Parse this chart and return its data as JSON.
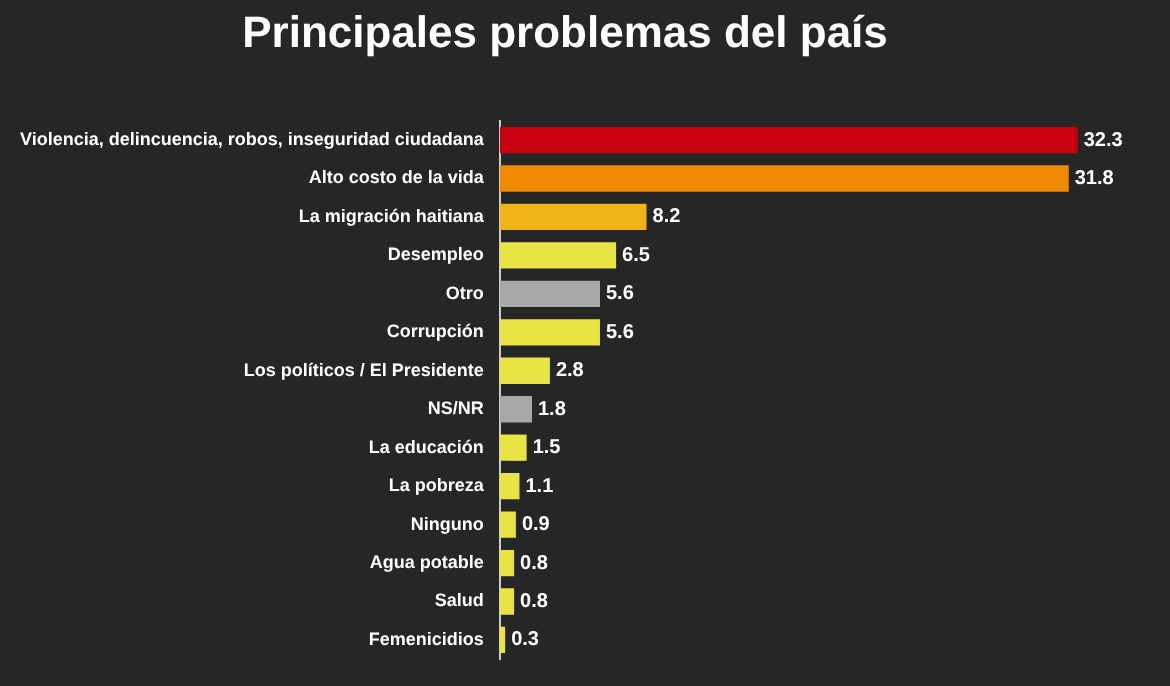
{
  "chart_data": {
    "type": "bar",
    "orientation": "horizontal",
    "title": "Principales problemas del país",
    "categories": [
      "Violencia, delincuencia, robos, inseguridad ciudadana",
      "Alto costo de la vida",
      "La migración haitiana",
      "Desempleo",
      "Otro",
      "Corrupción",
      "Los políticos / El Presidente",
      "NS/NR",
      "La educación",
      "La pobreza",
      "Ninguno",
      "Agua potable",
      "Salud",
      "Femenicidios"
    ],
    "values": [
      32.3,
      31.8,
      8.2,
      6.5,
      5.6,
      5.6,
      2.8,
      1.8,
      1.5,
      1.1,
      0.9,
      0.8,
      0.8,
      0.3
    ],
    "colors": [
      "#c8000f",
      "#f08a00",
      "#f0b418",
      "#e8e444",
      "#a8a8a8",
      "#e8e444",
      "#e8e444",
      "#a8a8a8",
      "#e8e444",
      "#e8e444",
      "#e8e444",
      "#e8e444",
      "#e8e444",
      "#e8e444"
    ],
    "data_labels": true,
    "legend": false
  }
}
